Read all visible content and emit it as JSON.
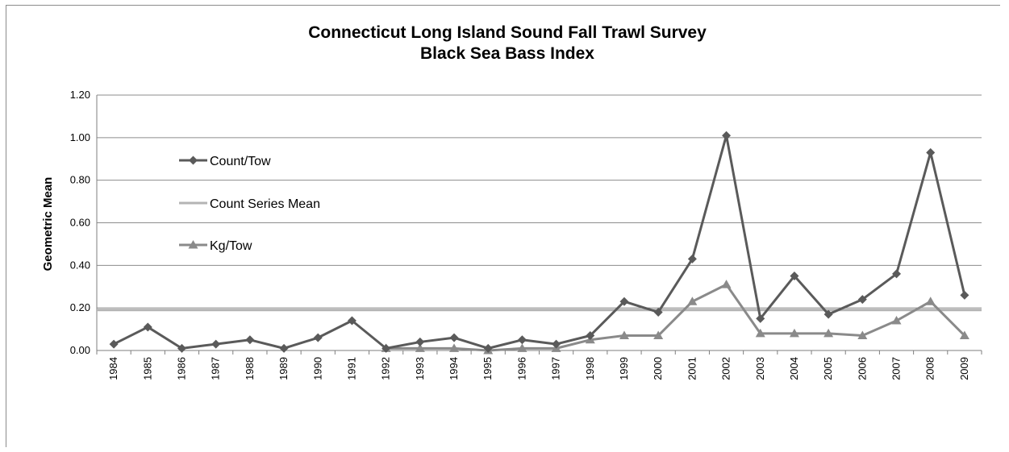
{
  "chart_data": {
    "type": "line",
    "title": "Connecticut Long Island Sound Fall Trawl Survey",
    "subtitle": "Black Sea Bass Index",
    "xlabel": "",
    "ylabel": "Geometric Mean",
    "ylim": [
      0,
      1.2
    ],
    "yticks": [
      "0.00",
      "0.20",
      "0.40",
      "0.60",
      "0.80",
      "1.00",
      "1.20"
    ],
    "grid": true,
    "legend_position": "upper-left inside plot",
    "categories": [
      "1984",
      "1985",
      "1986",
      "1987",
      "1988",
      "1989",
      "1990",
      "1991",
      "1992",
      "1993",
      "1994",
      "1995",
      "1996",
      "1997",
      "1998",
      "1999",
      "2000",
      "2001",
      "2002",
      "2003",
      "2004",
      "2005",
      "2006",
      "2007",
      "2008",
      "2009"
    ],
    "series": [
      {
        "name": "Count/Tow",
        "marker": "diamond",
        "color": "#5a5a5a",
        "values": [
          0.03,
          0.11,
          0.01,
          0.03,
          0.05,
          0.01,
          0.06,
          0.14,
          0.01,
          0.04,
          0.06,
          0.01,
          0.05,
          0.03,
          0.07,
          0.23,
          0.18,
          0.43,
          1.01,
          0.15,
          0.35,
          0.17,
          0.24,
          0.36,
          0.93,
          0.26
        ]
      },
      {
        "name": "Count Series Mean",
        "marker": "none",
        "color": "#b4b4b4",
        "values": [
          0.19,
          0.19,
          0.19,
          0.19,
          0.19,
          0.19,
          0.19,
          0.19,
          0.19,
          0.19,
          0.19,
          0.19,
          0.19,
          0.19,
          0.19,
          0.19,
          0.19,
          0.19,
          0.19,
          0.19,
          0.19,
          0.19,
          0.19,
          0.19,
          0.19,
          0.19
        ]
      },
      {
        "name": "Kg/Tow",
        "marker": "triangle",
        "color": "#8a8a8a",
        "values": [
          null,
          null,
          null,
          null,
          null,
          null,
          null,
          null,
          0.01,
          0.01,
          0.01,
          0.0,
          0.01,
          0.01,
          0.05,
          0.07,
          0.07,
          0.23,
          0.31,
          0.08,
          0.08,
          0.08,
          0.07,
          0.14,
          0.23,
          0.07
        ]
      }
    ]
  }
}
